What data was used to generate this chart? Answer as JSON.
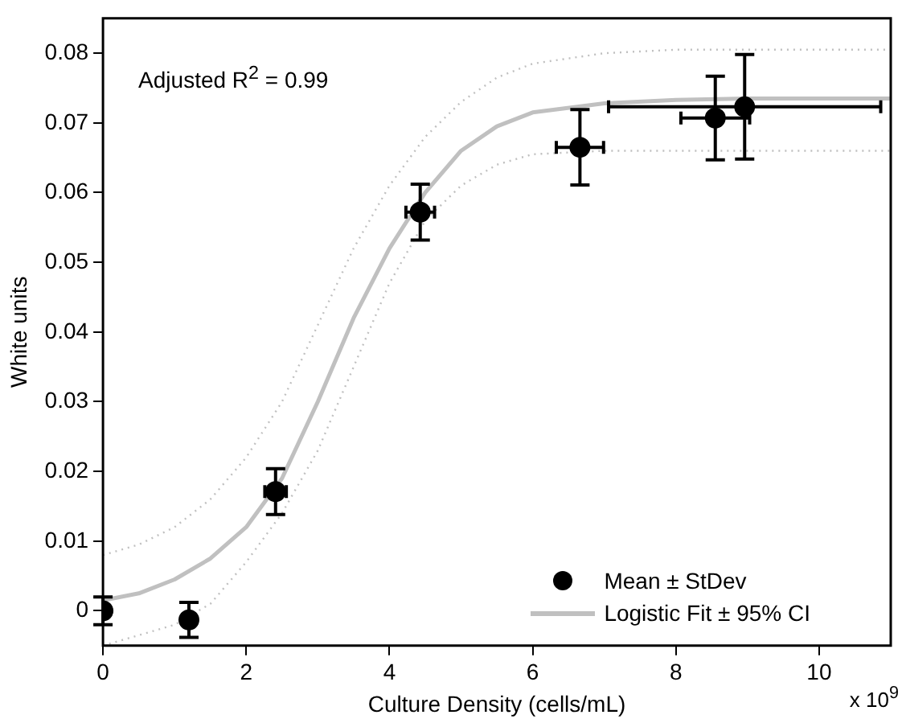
{
  "chart_data": {
    "type": "scatter",
    "xlabel": "Culture Density (cells/mL)",
    "ylabel": "White units",
    "annotations": [
      "Adjusted R$^{2}$ = 0.99",
      "x 10$^{9}$"
    ],
    "xlim": [
      0,
      11
    ],
    "xticks": [
      0,
      2,
      4,
      6,
      8,
      10
    ],
    "ylim": [
      -0.005,
      0.085
    ],
    "yticks": [
      0,
      0.01,
      0.02,
      0.03,
      0.04,
      0.05,
      0.06,
      0.07,
      0.08
    ],
    "grid": false,
    "legend": "bottom right",
    "series": [
      {
        "name": "Mean ± StDev",
        "color": "#000000",
        "marker": "circle",
        "x": [
          0,
          1.2,
          2.41,
          4.43,
          6.66,
          8.55,
          8.96
        ],
        "values": [
          0,
          -0.0013,
          0.0171,
          0.0572,
          0.0665,
          0.0707,
          0.0723
        ],
        "errors": [
          0.002,
          0.0025,
          0.0033,
          0.004,
          0.0054,
          0.006,
          0.0075
        ],
        "xerrors": [
          null,
          null,
          0.15,
          0.2,
          0.33,
          0.48,
          1.9
        ]
      },
      {
        "name": "Logistic Fit ± 95% CI",
        "type": "line",
        "color": "#c0c0c0",
        "line_style": "solid",
        "marker": "none",
        "x": [
          0,
          0.5,
          1,
          1.5,
          2,
          2.5,
          3,
          3.5,
          4,
          4.5,
          5,
          5.5,
          6,
          7,
          8,
          9,
          11
        ],
        "values": [
          0.0015,
          0.0025,
          0.0045,
          0.0075,
          0.012,
          0.019,
          0.03,
          0.042,
          0.052,
          0.06,
          0.066,
          0.0695,
          0.0715,
          0.0728,
          0.0733,
          0.0735,
          0.0735
        ]
      },
      {
        "type": "line",
        "color": "#c0c0c0",
        "line_style": "dotted",
        "marker": "none",
        "x": [
          0,
          0.5,
          1,
          1.5,
          2,
          2.5,
          3,
          3.5,
          4,
          4.5,
          5,
          5.5,
          6,
          7,
          8,
          9,
          11
        ],
        "values": [
          0.008,
          0.0095,
          0.012,
          0.016,
          0.022,
          0.03,
          0.041,
          0.052,
          0.061,
          0.068,
          0.073,
          0.0765,
          0.0785,
          0.08,
          0.0805,
          0.0805,
          0.0805
        ]
      },
      {
        "type": "line",
        "color": "#c0c0c0",
        "line_style": "dotted",
        "marker": "none",
        "x": [
          0,
          0.5,
          1,
          1.5,
          2,
          2.5,
          3,
          3.5,
          4,
          4.5,
          5,
          5.5,
          6,
          7,
          8,
          9,
          11
        ],
        "values": [
          -0.005,
          -0.0035,
          -0.002,
          0.001,
          0.007,
          0.014,
          0.023,
          0.035,
          0.047,
          0.056,
          0.061,
          0.064,
          0.0655,
          0.066,
          0.066,
          0.066,
          0.066
        ]
      }
    ]
  }
}
